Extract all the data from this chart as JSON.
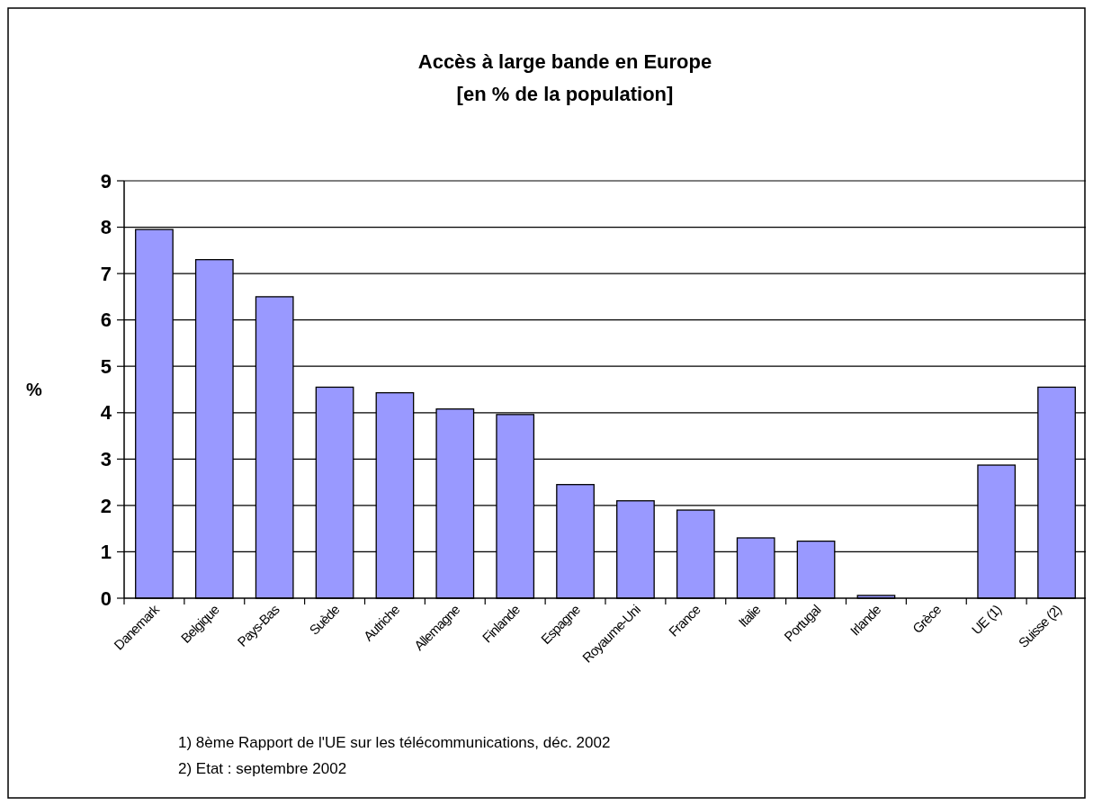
{
  "chart_data": {
    "type": "bar",
    "title": "Accès à large bande en Europe",
    "subtitle": "[en % de la population]",
    "ylabel": "%",
    "categories": [
      "Danemark",
      "Belgique",
      "Pays-Bas",
      "Suède",
      "Autriche",
      "Allemagne",
      "Finlande",
      "Espagne",
      "Royaume-Uni",
      "France",
      "Italie",
      "Portugal",
      "Irlande",
      "Grèce",
      "UE (1)",
      "Suisse (2)"
    ],
    "values": [
      7.95,
      7.3,
      6.5,
      4.55,
      4.43,
      4.08,
      3.96,
      2.45,
      2.1,
      1.9,
      1.3,
      1.23,
      0.06,
      0,
      2.87,
      4.55
    ],
    "color": "#9999ff",
    "ylim": [
      0,
      9
    ],
    "yticks": [
      0,
      1,
      2,
      3,
      4,
      5,
      6,
      7,
      8,
      9
    ],
    "grid": "y",
    "annotations": [
      "1) 8ème Rapport de l'UE sur les télécommunications, déc. 2002",
      "2) Etat : septembre 2002"
    ]
  }
}
